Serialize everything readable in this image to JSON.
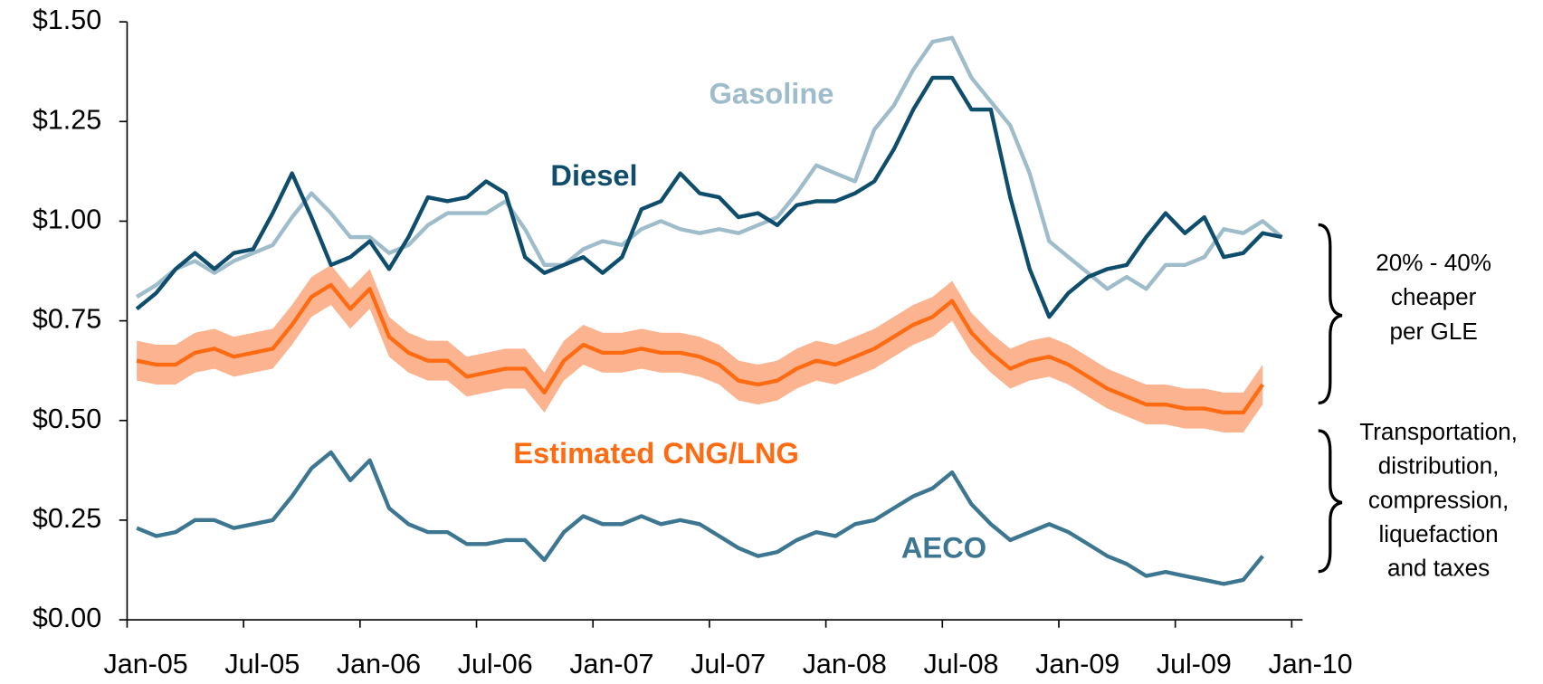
{
  "chart_data": {
    "type": "line",
    "categories": [
      "Jan-05",
      null,
      null,
      null,
      null,
      null,
      "Jul-05",
      null,
      null,
      null,
      null,
      null,
      "Jan-06",
      null,
      null,
      null,
      null,
      null,
      "Jul-06",
      null,
      null,
      null,
      null,
      null,
      "Jan-07",
      null,
      null,
      null,
      null,
      null,
      "Jul-07",
      null,
      null,
      null,
      null,
      null,
      "Jan-08",
      null,
      null,
      null,
      null,
      null,
      "Jul-08",
      null,
      null,
      null,
      null,
      null,
      "Jan-09",
      null,
      null,
      null,
      null,
      null,
      "Jul-09",
      null,
      null,
      null,
      null,
      null,
      "Jan-10"
    ],
    "ylim": [
      0,
      1.5
    ],
    "yticks": [
      {
        "value": 0,
        "label": "$0.00"
      },
      {
        "value": 0.25,
        "label": "$0.25"
      },
      {
        "value": 0.5,
        "label": "$0.50"
      },
      {
        "value": 0.75,
        "label": "$0.75"
      },
      {
        "value": 1,
        "label": "$1.00"
      },
      {
        "value": 1.25,
        "label": "$1.25"
      },
      {
        "value": 1.5,
        "label": "$1.50"
      }
    ],
    "series": [
      {
        "name": "Gasoline",
        "color": "#9fbccb",
        "values": [
          0.81,
          0.84,
          0.88,
          0.9,
          0.87,
          0.9,
          0.92,
          0.94,
          1.01,
          1.07,
          1.02,
          0.96,
          0.96,
          0.92,
          0.94,
          0.99,
          1.02,
          1.02,
          1.02,
          1.05,
          0.98,
          0.89,
          0.89,
          0.93,
          0.95,
          0.94,
          0.98,
          1.0,
          0.98,
          0.97,
          0.98,
          0.97,
          0.99,
          1.01,
          1.07,
          1.14,
          1.12,
          1.1,
          1.23,
          1.29,
          1.38,
          1.45,
          1.46,
          1.36,
          1.3,
          1.24,
          1.12,
          0.95,
          0.91,
          0.87,
          0.83,
          0.86,
          0.83,
          0.89,
          0.89,
          0.91,
          0.98,
          0.97,
          1.0,
          0.96,
          null
        ]
      },
      {
        "name": "Diesel",
        "color": "#0e4d6c",
        "values": [
          0.78,
          0.82,
          0.88,
          0.92,
          0.88,
          0.92,
          0.93,
          1.02,
          1.12,
          1.01,
          0.89,
          0.91,
          0.95,
          0.88,
          0.96,
          1.06,
          1.05,
          1.06,
          1.1,
          1.07,
          0.91,
          0.87,
          0.89,
          0.91,
          0.87,
          0.91,
          1.03,
          1.05,
          1.12,
          1.07,
          1.06,
          1.01,
          1.02,
          0.99,
          1.04,
          1.05,
          1.05,
          1.07,
          1.1,
          1.18,
          1.28,
          1.36,
          1.36,
          1.28,
          1.28,
          1.06,
          0.88,
          0.76,
          0.82,
          0.86,
          0.88,
          0.89,
          0.96,
          1.02,
          0.97,
          1.01,
          0.91,
          0.92,
          0.97,
          0.96,
          null
        ]
      },
      {
        "name": "Estimated CNG/LNG",
        "color": "#ff6b12",
        "band_color": "#fbb48f",
        "values": [
          0.65,
          0.64,
          0.64,
          0.67,
          0.68,
          0.66,
          0.67,
          0.68,
          0.74,
          0.81,
          0.84,
          0.78,
          0.83,
          0.71,
          0.67,
          0.65,
          0.65,
          0.61,
          0.62,
          0.63,
          0.63,
          0.57,
          0.65,
          0.69,
          0.67,
          0.67,
          0.68,
          0.67,
          0.67,
          0.66,
          0.64,
          0.6,
          0.59,
          0.6,
          0.63,
          0.65,
          0.64,
          0.66,
          0.68,
          0.71,
          0.74,
          0.76,
          0.8,
          0.72,
          0.67,
          0.63,
          0.65,
          0.66,
          0.64,
          0.61,
          0.58,
          0.56,
          0.54,
          0.54,
          0.53,
          0.53,
          0.52,
          0.52,
          0.59,
          null,
          null
        ],
        "band_upper": [
          0.7,
          0.69,
          0.69,
          0.72,
          0.73,
          0.71,
          0.72,
          0.73,
          0.79,
          0.86,
          0.89,
          0.83,
          0.88,
          0.76,
          0.72,
          0.7,
          0.7,
          0.66,
          0.67,
          0.68,
          0.68,
          0.62,
          0.7,
          0.74,
          0.72,
          0.72,
          0.73,
          0.72,
          0.72,
          0.71,
          0.69,
          0.65,
          0.64,
          0.65,
          0.68,
          0.7,
          0.69,
          0.71,
          0.73,
          0.76,
          0.79,
          0.81,
          0.85,
          0.77,
          0.72,
          0.68,
          0.7,
          0.71,
          0.69,
          0.66,
          0.63,
          0.61,
          0.59,
          0.59,
          0.58,
          0.58,
          0.57,
          0.57,
          0.64,
          null,
          null
        ],
        "band_lower": [
          0.6,
          0.59,
          0.59,
          0.62,
          0.63,
          0.61,
          0.62,
          0.63,
          0.69,
          0.76,
          0.79,
          0.73,
          0.78,
          0.66,
          0.62,
          0.6,
          0.6,
          0.56,
          0.57,
          0.58,
          0.58,
          0.52,
          0.6,
          0.64,
          0.62,
          0.62,
          0.63,
          0.62,
          0.62,
          0.61,
          0.59,
          0.55,
          0.54,
          0.55,
          0.58,
          0.6,
          0.59,
          0.61,
          0.63,
          0.66,
          0.69,
          0.71,
          0.75,
          0.67,
          0.62,
          0.58,
          0.6,
          0.61,
          0.59,
          0.56,
          0.53,
          0.51,
          0.49,
          0.49,
          0.48,
          0.48,
          0.47,
          0.47,
          0.54,
          null,
          null
        ]
      },
      {
        "name": "AECO",
        "color": "#3c7691",
        "values": [
          0.23,
          0.21,
          0.22,
          0.25,
          0.25,
          0.23,
          0.24,
          0.25,
          0.31,
          0.38,
          0.42,
          0.35,
          0.4,
          0.28,
          0.24,
          0.22,
          0.22,
          0.19,
          0.19,
          0.2,
          0.2,
          0.15,
          0.22,
          0.26,
          0.24,
          0.24,
          0.26,
          0.24,
          0.25,
          0.24,
          0.21,
          0.18,
          0.16,
          0.17,
          0.2,
          0.22,
          0.21,
          0.24,
          0.25,
          0.28,
          0.31,
          0.33,
          0.37,
          0.29,
          0.24,
          0.2,
          0.22,
          0.24,
          0.22,
          0.19,
          0.16,
          0.14,
          0.11,
          0.12,
          0.11,
          0.1,
          0.09,
          0.1,
          0.16,
          null,
          null
        ]
      }
    ],
    "annotations": [
      {
        "lines": [
          "20% - 40%",
          "cheaper",
          "per GLE"
        ]
      },
      {
        "lines": [
          "Transportation,",
          "distribution,",
          "compression,",
          "liquefaction",
          "and taxes"
        ]
      }
    ]
  }
}
